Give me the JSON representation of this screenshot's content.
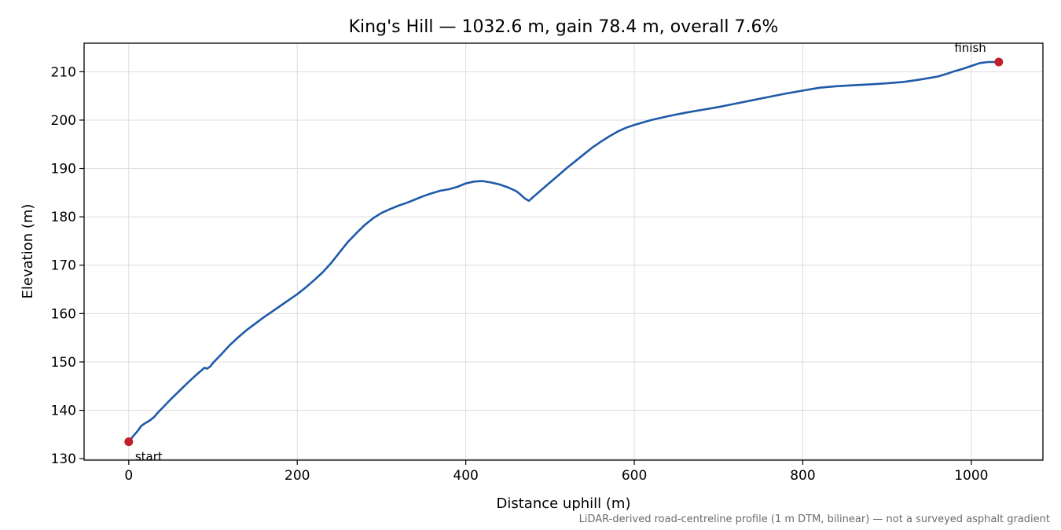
{
  "chart_data": {
    "type": "line",
    "title": "King's Hill — 1032.6 m, gain 78.4 m, overall 7.6%",
    "xlabel": "Distance uphill (m)",
    "ylabel": "Elevation (m)",
    "xlim": [
      -53,
      1085
    ],
    "ylim": [
      129.7,
      215.9
    ],
    "xticks": [
      0,
      200,
      400,
      600,
      800,
      1000
    ],
    "yticks": [
      130,
      140,
      150,
      160,
      170,
      180,
      190,
      200,
      210
    ],
    "grid": true,
    "line_color": "#1f5aa8",
    "marker_color": "#c0202a",
    "series": [
      {
        "x": [
          0,
          5,
          10,
          15,
          20,
          25,
          30,
          35,
          40,
          50,
          60,
          70,
          80,
          90,
          93,
          97,
          100,
          110,
          120,
          130,
          140,
          150,
          160,
          170,
          180,
          190,
          200,
          210,
          220,
          230,
          240,
          250,
          260,
          270,
          280,
          290,
          300,
          310,
          320,
          330,
          340,
          350,
          360,
          370,
          380,
          390,
          400,
          410,
          420,
          430,
          440,
          450,
          460,
          465,
          470,
          475,
          480,
          490,
          500,
          510,
          520,
          530,
          540,
          550,
          560,
          570,
          580,
          590,
          600,
          620,
          640,
          660,
          680,
          700,
          720,
          740,
          760,
          780,
          800,
          820,
          840,
          860,
          880,
          900,
          920,
          940,
          960,
          970,
          980,
          990,
          1000,
          1010,
          1020,
          1025,
          1032.6
        ],
        "y": [
          133.5,
          134.6,
          135.6,
          136.8,
          137.4,
          137.9,
          138.6,
          139.6,
          140.5,
          142.3,
          144.0,
          145.7,
          147.3,
          148.8,
          148.6,
          149.1,
          149.8,
          151.6,
          153.5,
          155.1,
          156.6,
          157.9,
          159.2,
          160.4,
          161.6,
          162.8,
          164.0,
          165.4,
          166.9,
          168.5,
          170.4,
          172.6,
          174.8,
          176.6,
          178.3,
          179.7,
          180.8,
          181.6,
          182.3,
          182.9,
          183.6,
          184.3,
          184.9,
          185.4,
          185.7,
          186.2,
          186.9,
          187.3,
          187.4,
          187.1,
          186.7,
          186.1,
          185.3,
          184.6,
          183.8,
          183.3,
          184.1,
          185.6,
          187.1,
          188.6,
          190.1,
          191.5,
          192.9,
          194.3,
          195.5,
          196.6,
          197.6,
          198.4,
          199.0,
          200.0,
          200.8,
          201.5,
          202.1,
          202.7,
          203.4,
          204.1,
          204.8,
          205.5,
          206.1,
          206.7,
          207.0,
          207.2,
          207.4,
          207.6,
          207.9,
          208.4,
          209.0,
          209.5,
          210.1,
          210.6,
          211.2,
          211.8,
          212.0,
          212.0,
          212.0
        ]
      }
    ],
    "markers": [
      {
        "label": "start",
        "x": 0,
        "y": 133.5
      },
      {
        "label": "finish",
        "x": 1032.6,
        "y": 212.0
      }
    ],
    "footnote": "LiDAR-derived road-centreline profile (1 m DTM, bilinear) — not a surveyed asphalt gradient"
  }
}
